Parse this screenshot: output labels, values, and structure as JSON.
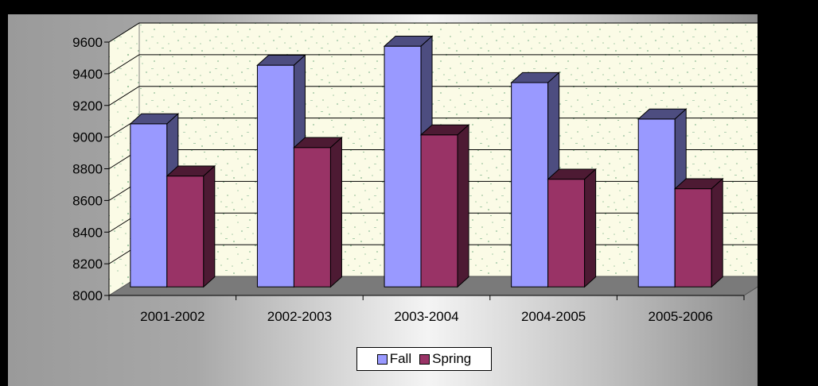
{
  "chart_data": {
    "type": "bar",
    "categories": [
      "2001-2002",
      "2002-2003",
      "2003-2004",
      "2004-2005",
      "2005-2006"
    ],
    "series": [
      {
        "name": "Fall",
        "values": [
          9030,
          9400,
          9520,
          9290,
          9060
        ],
        "color": "#9999ff",
        "side_color": "#4d4d80"
      },
      {
        "name": "Spring",
        "values": [
          8700,
          8880,
          8960,
          8680,
          8620
        ],
        "color": "#993366",
        "side_color": "#4d1a33"
      }
    ],
    "yticks": [
      "8000",
      "8200",
      "8400",
      "8600",
      "8800",
      "9000",
      "9200",
      "9400",
      "9600"
    ],
    "ylim": [
      8000,
      9600
    ],
    "grid": true,
    "legend_position": "bottom",
    "title": "",
    "xlabel": "",
    "ylabel": ""
  }
}
